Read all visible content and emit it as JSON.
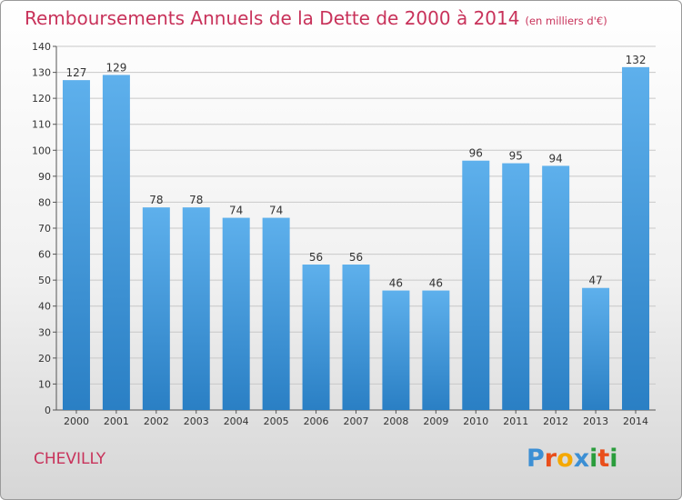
{
  "title": "Remboursements Annuels de la Dette de 2000 à 2014",
  "unit": "(en milliers d'€)",
  "commune": "CHEVILLY",
  "logo": {
    "text": "Proxiti",
    "letters": [
      {
        "char": "P",
        "color": "#3c8fd4"
      },
      {
        "char": "r",
        "color": "#e94e1b"
      },
      {
        "char": "o",
        "color": "#f5a800"
      },
      {
        "char": "x",
        "color": "#3c8fd4"
      },
      {
        "char": "i",
        "color": "#2a9d3c"
      },
      {
        "char": "t",
        "color": "#e94e1b"
      },
      {
        "char": "i",
        "color": "#2a9d3c"
      }
    ]
  },
  "colors": {
    "title": "#c8325a",
    "bar_top": "#5eb0ec",
    "bar_bottom": "#2a7fc4",
    "grid": "#c8c8c8",
    "axis_text": "#333333"
  },
  "chart_data": {
    "type": "bar",
    "title": "Remboursements Annuels de la Dette de 2000 à 2014",
    "subtitle": "(en milliers d'€)",
    "xlabel": "",
    "ylabel": "",
    "categories": [
      "2000",
      "2001",
      "2002",
      "2003",
      "2004",
      "2005",
      "2006",
      "2007",
      "2008",
      "2009",
      "2010",
      "2011",
      "2012",
      "2013",
      "2014"
    ],
    "values": [
      127,
      129,
      78,
      78,
      74,
      74,
      56,
      56,
      46,
      46,
      96,
      95,
      94,
      47,
      132
    ],
    "value_labels": [
      "127",
      "129",
      "78",
      "78",
      "74",
      "74",
      "56",
      "56",
      "46",
      "46",
      "96",
      "95",
      "94",
      "47",
      "132"
    ],
    "ylim": [
      0,
      140
    ],
    "yticks": [
      0,
      10,
      20,
      30,
      40,
      50,
      60,
      70,
      80,
      90,
      100,
      110,
      120,
      130,
      140
    ],
    "ytick_labels": [
      "0",
      "10",
      "20",
      "30",
      "40",
      "50",
      "60",
      "70",
      "80",
      "90",
      "100",
      "110",
      "120",
      "130",
      "140"
    ],
    "grid": true,
    "legend": "none"
  }
}
